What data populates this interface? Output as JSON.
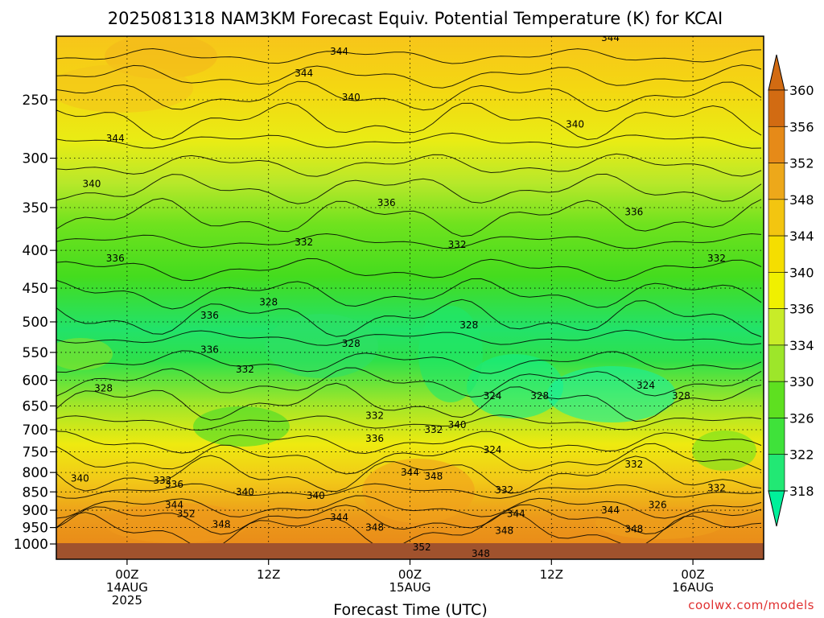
{
  "chart_data": {
    "type": "heatmap",
    "title": "2025081318 NAM3KM Forecast Equiv. Potential Temperature (K) for KCAI",
    "xlabel": "Forecast Time (UTC)",
    "ylabel": "",
    "yscale": "log-pressure",
    "y_reversed": true,
    "ylim": [
      200,
      1000
    ],
    "y_ticks": [
      250,
      300,
      350,
      400,
      450,
      500,
      550,
      600,
      650,
      700,
      750,
      800,
      850,
      900,
      950,
      1000
    ],
    "x_ticks": [
      {
        "hour": 6,
        "lines": [
          "00Z",
          "14AUG",
          "2025"
        ]
      },
      {
        "hour": 18,
        "lines": [
          "12Z"
        ]
      },
      {
        "hour": 30,
        "lines": [
          "00Z",
          "15AUG"
        ]
      },
      {
        "hour": 42,
        "lines": [
          "12Z"
        ]
      },
      {
        "hour": 54,
        "lines": [
          "00Z",
          "16AUG"
        ]
      }
    ],
    "xlim": [
      0,
      60
    ],
    "grid": true,
    "colorbar": {
      "ticks": [
        318,
        322,
        326,
        330,
        334,
        336,
        340,
        344,
        348,
        352,
        356,
        360
      ],
      "colors": [
        "#00f09a",
        "#22e874",
        "#3fe23a",
        "#5ee020",
        "#9de62a",
        "#c8ec28",
        "#f0f000",
        "#f5de00",
        "#f3c510",
        "#eda81a",
        "#e68a18",
        "#d26b12"
      ],
      "extend": "both"
    },
    "contour_labels": [
      {
        "t": 24,
        "p": 215,
        "v": "344"
      },
      {
        "t": 5,
        "p": 282,
        "v": "344"
      },
      {
        "t": 3,
        "p": 325,
        "v": "340"
      },
      {
        "t": 5,
        "p": 410,
        "v": "336"
      },
      {
        "t": 21,
        "p": 230,
        "v": "344"
      },
      {
        "t": 25,
        "p": 248,
        "v": "340"
      },
      {
        "t": 44,
        "p": 270,
        "v": "340"
      },
      {
        "t": 47,
        "p": 206,
        "v": "344"
      },
      {
        "t": 28,
        "p": 345,
        "v": "336"
      },
      {
        "t": 49,
        "p": 355,
        "v": "336"
      },
      {
        "t": 21,
        "p": 390,
        "v": "332"
      },
      {
        "t": 34,
        "p": 393,
        "v": "332"
      },
      {
        "t": 56,
        "p": 410,
        "v": "332"
      },
      {
        "t": 18,
        "p": 470,
        "v": "328"
      },
      {
        "t": 25,
        "p": 535,
        "v": "328"
      },
      {
        "t": 35,
        "p": 505,
        "v": "328"
      },
      {
        "t": 13,
        "p": 490,
        "v": "336"
      },
      {
        "t": 13,
        "p": 545,
        "v": "336"
      },
      {
        "t": 16,
        "p": 580,
        "v": "332"
      },
      {
        "t": 4,
        "p": 615,
        "v": "328"
      },
      {
        "t": 37,
        "p": 630,
        "v": "324"
      },
      {
        "t": 41,
        "p": 630,
        "v": "328"
      },
      {
        "t": 50,
        "p": 610,
        "v": "324"
      },
      {
        "t": 53,
        "p": 630,
        "v": "328"
      },
      {
        "t": 27,
        "p": 670,
        "v": "332"
      },
      {
        "t": 27,
        "p": 720,
        "v": "336"
      },
      {
        "t": 32,
        "p": 700,
        "v": "332"
      },
      {
        "t": 34,
        "p": 690,
        "v": "340"
      },
      {
        "t": 37,
        "p": 745,
        "v": "324"
      },
      {
        "t": 49,
        "p": 780,
        "v": "332"
      },
      {
        "t": 2,
        "p": 815,
        "v": "340"
      },
      {
        "t": 9,
        "p": 820,
        "v": "332"
      },
      {
        "t": 10,
        "p": 830,
        "v": "336"
      },
      {
        "t": 16,
        "p": 850,
        "v": "340"
      },
      {
        "t": 22,
        "p": 860,
        "v": "340"
      },
      {
        "t": 30,
        "p": 800,
        "v": "344"
      },
      {
        "t": 32,
        "p": 810,
        "v": "348"
      },
      {
        "t": 38,
        "p": 845,
        "v": "332"
      },
      {
        "t": 39,
        "p": 910,
        "v": "344"
      },
      {
        "t": 47,
        "p": 900,
        "v": "344"
      },
      {
        "t": 51,
        "p": 885,
        "v": "326"
      },
      {
        "t": 56,
        "p": 840,
        "v": "332"
      },
      {
        "t": 10,
        "p": 885,
        "v": "344"
      },
      {
        "t": 11,
        "p": 910,
        "v": "352"
      },
      {
        "t": 14,
        "p": 940,
        "v": "348"
      },
      {
        "t": 24,
        "p": 920,
        "v": "344"
      },
      {
        "t": 27,
        "p": 950,
        "v": "348"
      },
      {
        "t": 38,
        "p": 960,
        "v": "348"
      },
      {
        "t": 49,
        "p": 955,
        "v": "348"
      },
      {
        "t": 31,
        "p": 1010,
        "v": "352"
      },
      {
        "t": 36,
        "p": 1030,
        "v": "348"
      }
    ]
  },
  "credit": "coolwx.com/models"
}
